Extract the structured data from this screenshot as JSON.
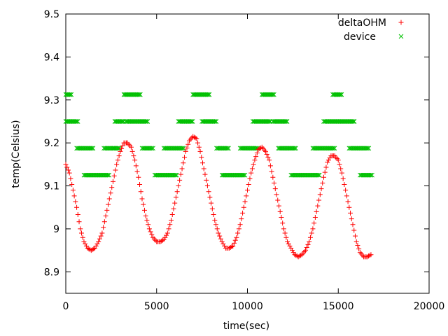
{
  "chart_data": {
    "type": "scatter",
    "title": "",
    "xlabel": "time(sec)",
    "ylabel": "temp(Celsius)",
    "xlim": [
      0,
      20000
    ],
    "ylim": [
      8.85,
      9.5
    ],
    "xticks": [
      0,
      5000,
      10000,
      15000,
      20000
    ],
    "yticks": [
      8.9,
      9.0,
      9.1,
      9.2,
      9.3,
      9.4,
      9.5
    ],
    "ytick_labels": [
      "8.9",
      "9",
      "9.1",
      "9.2",
      "9.3",
      "9.4",
      "9.5"
    ],
    "grid": false,
    "legend_position": "top-right",
    "series": [
      {
        "name": "deltaOHM",
        "marker": "plus",
        "color": "#ff0000",
        "x": [
          0,
          200,
          400,
          600,
          800,
          1000,
          1200,
          1400,
          1600,
          1800,
          2000,
          2200,
          2400,
          2600,
          2800,
          3000,
          3200,
          3400,
          3600,
          3800,
          4000,
          4200,
          4400,
          4600,
          4800,
          5000,
          5200,
          5400,
          5600,
          5800,
          6000,
          6200,
          6400,
          6600,
          6800,
          7000,
          7200,
          7400,
          7600,
          7800,
          8000,
          8200,
          8400,
          8600,
          8800,
          9000,
          9200,
          9400,
          9600,
          9800,
          10000,
          10200,
          10400,
          10600,
          10800,
          11000,
          11200,
          11400,
          11600,
          11800,
          12000,
          12200,
          12400,
          12600,
          12800,
          13000,
          13200,
          13400,
          13600,
          13800,
          14000,
          14200,
          14400,
          14600,
          14800,
          15000,
          15200,
          15400,
          15600,
          15800,
          16000,
          16200,
          16400,
          16600,
          16800
        ],
        "y": [
          9.15,
          9.13,
          9.09,
          9.05,
          9.0,
          8.97,
          8.955,
          8.95,
          8.955,
          8.97,
          8.99,
          9.03,
          9.07,
          9.11,
          9.15,
          9.18,
          9.2,
          9.2,
          9.19,
          9.16,
          9.12,
          9.07,
          9.03,
          9.0,
          8.98,
          8.97,
          8.97,
          8.975,
          8.99,
          9.02,
          9.06,
          9.1,
          9.14,
          9.18,
          9.205,
          9.215,
          9.21,
          9.18,
          9.14,
          9.1,
          9.06,
          9.02,
          8.99,
          8.97,
          8.955,
          8.955,
          8.96,
          8.98,
          9.01,
          9.05,
          9.09,
          9.13,
          9.16,
          9.185,
          9.19,
          9.18,
          9.16,
          9.12,
          9.08,
          9.04,
          9.0,
          8.97,
          8.955,
          8.94,
          8.935,
          8.94,
          8.95,
          8.97,
          9.0,
          9.04,
          9.08,
          9.12,
          9.155,
          9.17,
          9.17,
          9.16,
          9.13,
          9.09,
          9.05,
          9.01,
          8.97,
          8.945,
          8.935,
          8.935,
          8.94
        ]
      },
      {
        "name": "device",
        "marker": "cross",
        "color": "#00c000",
        "segments": [
          {
            "y": 9.3125,
            "x0": 0,
            "x1": 300
          },
          {
            "y": 9.25,
            "x0": 0,
            "x1": 700
          },
          {
            "y": 9.1875,
            "x0": 600,
            "x1": 1500
          },
          {
            "y": 9.125,
            "x0": 1000,
            "x1": 2400
          },
          {
            "y": 9.1875,
            "x0": 2100,
            "x1": 2700
          },
          {
            "y": 9.25,
            "x0": 2700,
            "x1": 3200
          },
          {
            "y": 9.1875,
            "x0": 2600,
            "x1": 3000
          },
          {
            "y": 9.3125,
            "x0": 3200,
            "x1": 4100
          },
          {
            "y": 9.25,
            "x0": 3300,
            "x1": 4500
          },
          {
            "y": 9.1875,
            "x0": 4200,
            "x1": 4800
          },
          {
            "y": 9.125,
            "x0": 4900,
            "x1": 6100
          },
          {
            "y": 9.1875,
            "x0": 5400,
            "x1": 6500
          },
          {
            "y": 9.25,
            "x0": 6200,
            "x1": 7000
          },
          {
            "y": 9.3125,
            "x0": 7000,
            "x1": 7900
          },
          {
            "y": 9.25,
            "x0": 7500,
            "x1": 8300
          },
          {
            "y": 9.1875,
            "x0": 8300,
            "x1": 9000
          },
          {
            "y": 9.125,
            "x0": 8600,
            "x1": 9900
          },
          {
            "y": 9.1875,
            "x0": 9600,
            "x1": 10600
          },
          {
            "y": 9.25,
            "x0": 10300,
            "x1": 11300
          },
          {
            "y": 9.3125,
            "x0": 10800,
            "x1": 11500
          },
          {
            "y": 9.25,
            "x0": 11400,
            "x1": 12200
          },
          {
            "y": 9.1875,
            "x0": 11700,
            "x1": 12700
          },
          {
            "y": 9.125,
            "x0": 12400,
            "x1": 14000
          },
          {
            "y": 9.1875,
            "x0": 13600,
            "x1": 14800
          },
          {
            "y": 9.25,
            "x0": 14200,
            "x1": 15900
          },
          {
            "y": 9.3125,
            "x0": 14700,
            "x1": 15200
          },
          {
            "y": 9.1875,
            "x0": 15600,
            "x1": 16700
          },
          {
            "y": 9.125,
            "x0": 16200,
            "x1": 16900
          }
        ]
      }
    ]
  }
}
